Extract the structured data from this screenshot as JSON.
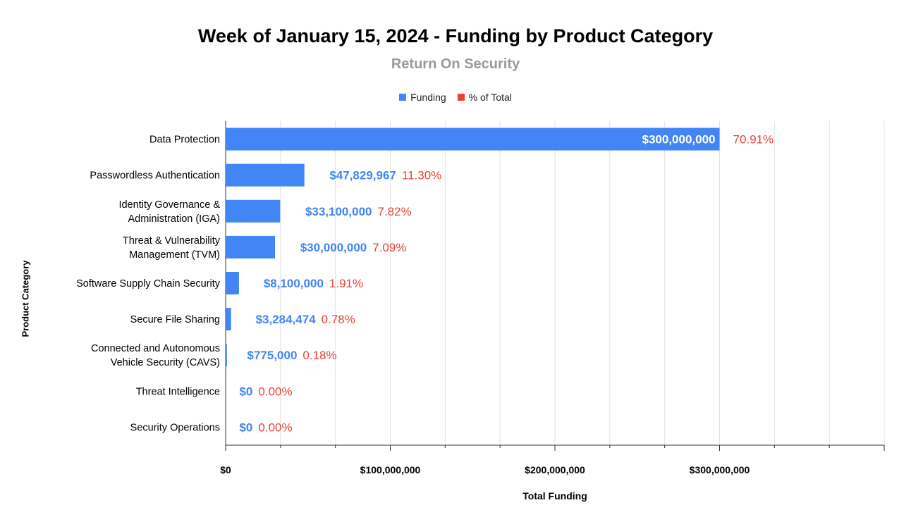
{
  "chart_data": {
    "type": "bar",
    "orientation": "horizontal",
    "title": "Week of January 15, 2024 - Funding by Product Category",
    "subtitle": "Return On Security",
    "xlabel": "Total Funding",
    "ylabel": "Product Category",
    "xlim": [
      0,
      400000000
    ],
    "x_ticks": [
      0,
      100000000,
      200000000,
      300000000
    ],
    "x_tick_labels": [
      "$0",
      "$100,000,000",
      "$200,000,000",
      "$300,000,000"
    ],
    "grid": true,
    "legend_position": "top-center",
    "legend": [
      {
        "name": "Funding",
        "color": "#4285f4"
      },
      {
        "name": "% of Total",
        "color": "#ea4335"
      }
    ],
    "categories": [
      [
        "Data Protection"
      ],
      [
        "Passwordless Authentication"
      ],
      [
        "Identity Governance &",
        "Administration (IGA)"
      ],
      [
        "Threat & Vulnerability",
        "Management (TVM)"
      ],
      [
        "Software Supply Chain Security"
      ],
      [
        "Secure File Sharing"
      ],
      [
        "Connected and Autonomous",
        "Vehicle Security (CAVS)"
      ],
      [
        "Threat Intelligence"
      ],
      [
        "Security Operations"
      ]
    ],
    "values": [
      300000000,
      47829967,
      33100000,
      30000000,
      8100000,
      3284474,
      775000,
      0,
      0
    ],
    "value_labels": [
      "$300,000,000",
      "$47,829,967",
      "$33,100,000",
      "$30,000,000",
      "$8,100,000",
      "$3,284,474",
      "$775,000",
      "$0",
      "$0"
    ],
    "percent_labels": [
      "70.91%",
      "11.30%",
      "7.82%",
      "7.09%",
      "1.91%",
      "0.78%",
      "0.18%",
      "0.00%",
      "0.00%"
    ]
  }
}
